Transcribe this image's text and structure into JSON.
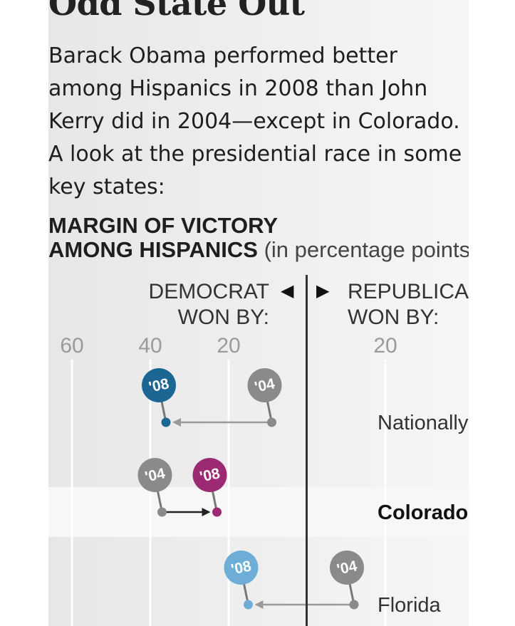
{
  "header": {
    "title": "Odd State Out",
    "description": "Barack Obama performed better\namong Hispanics in 2008 than John\nKerry did in 2004—except in Colorado.\nA look at the presidential race in some\nkey states:",
    "measure_line1": "MARGIN OF VICTORY",
    "measure_line2_strong": "AMONG HISPANICS",
    "measure_line2_unit": "(in percentage points)"
  },
  "axis": {
    "democrat_label": "DEMOCRAT\nWON BY:",
    "republican_label": "REPUBLICAN\nWON BY:",
    "left_arrow": "◀",
    "right_arrow": "▶"
  },
  "colors": {
    "year_2004": "#8a8a8a",
    "nationally_2008": "#1c6694",
    "colorado_2008": "#9b2a73",
    "florida_2008": "#6eaed6",
    "row_band": "#f7f7f7"
  },
  "chart_data": {
    "type": "dot",
    "title": "MARGIN OF VICTORY AMONG HISPANICS",
    "xlabel": "",
    "ylabel": "",
    "x_ticks": [
      {
        "value": -60,
        "label": "60"
      },
      {
        "value": -40,
        "label": "40"
      },
      {
        "value": -20,
        "label": "20"
      },
      {
        "value": 20,
        "label": "20"
      }
    ],
    "xlim": [
      -65,
      40
    ],
    "x_note": "negative = Democrat margin, positive = Republican margin",
    "categories": [
      "Nationally",
      "Colorado",
      "Florida"
    ],
    "series": [
      {
        "name": "'04",
        "values": [
          -9,
          -37,
          12
        ]
      },
      {
        "name": "'08",
        "values": [
          -36,
          -23,
          -15
        ]
      }
    ]
  }
}
